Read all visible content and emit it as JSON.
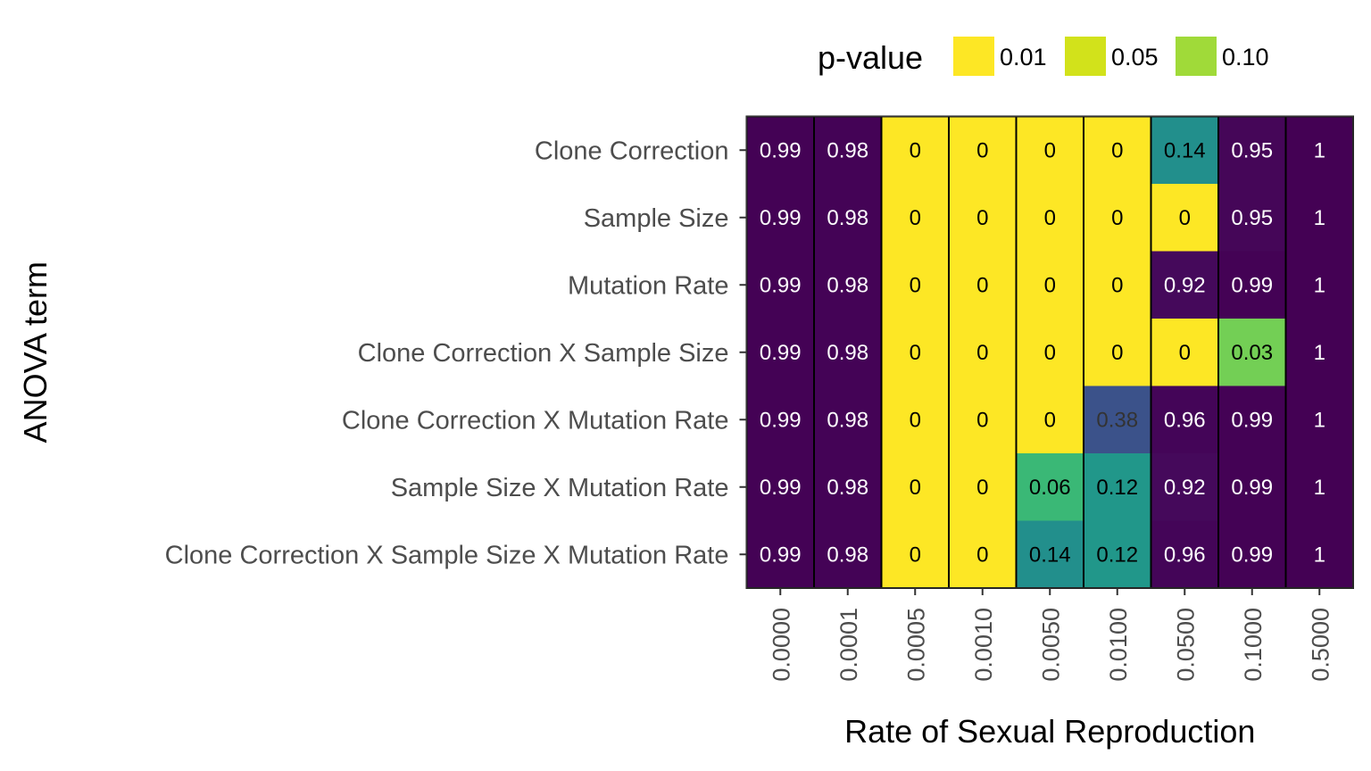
{
  "chart_data": {
    "type": "heatmap",
    "xlabel": "Rate of Sexual Reproduction",
    "ylabel": "ANOVA term",
    "x_categories": [
      "0.0000",
      "0.0001",
      "0.0005",
      "0.0010",
      "0.0050",
      "0.0100",
      "0.0500",
      "0.1000",
      "0.5000"
    ],
    "y_categories": [
      "Clone Correction",
      "Sample Size",
      "Mutation Rate",
      "Clone Correction X Sample Size",
      "Clone Correction X Mutation Rate",
      "Sample Size X Mutation Rate",
      "Clone Correction X Sample Size X Mutation Rate"
    ],
    "values": [
      [
        0.99,
        0.98,
        0,
        0,
        0,
        0,
        0.14,
        0.95,
        1
      ],
      [
        0.99,
        0.98,
        0,
        0,
        0,
        0,
        0,
        0.95,
        1
      ],
      [
        0.99,
        0.98,
        0,
        0,
        0,
        0,
        0.92,
        0.99,
        1
      ],
      [
        0.99,
        0.98,
        0,
        0,
        0,
        0,
        0,
        0.03,
        1
      ],
      [
        0.99,
        0.98,
        0,
        0,
        0,
        0.38,
        0.96,
        0.99,
        1
      ],
      [
        0.99,
        0.98,
        0,
        0,
        0.06,
        0.12,
        0.92,
        0.99,
        1
      ],
      [
        0.99,
        0.98,
        0,
        0,
        0.14,
        0.12,
        0.96,
        0.99,
        1
      ]
    ],
    "value_labels": [
      [
        "0.99",
        "0.98",
        "0",
        "0",
        "0",
        "0",
        "0.14",
        "0.95",
        "1"
      ],
      [
        "0.99",
        "0.98",
        "0",
        "0",
        "0",
        "0",
        "0",
        "0.95",
        "1"
      ],
      [
        "0.99",
        "0.98",
        "0",
        "0",
        "0",
        "0",
        "0.92",
        "0.99",
        "1"
      ],
      [
        "0.99",
        "0.98",
        "0",
        "0",
        "0",
        "0",
        "0",
        "0.03",
        "1"
      ],
      [
        "0.99",
        "0.98",
        "0",
        "0",
        "0",
        "0.38",
        "0.96",
        "0.99",
        "1"
      ],
      [
        "0.99",
        "0.98",
        "0",
        "0",
        "0.06",
        "0.12",
        "0.92",
        "0.99",
        "1"
      ],
      [
        "0.99",
        "0.98",
        "0",
        "0",
        "0.14",
        "0.12",
        "0.96",
        "0.99",
        "1"
      ]
    ],
    "legend": {
      "title": "p-value",
      "placement": "top",
      "entries": [
        {
          "label": "0.01",
          "color": "#FDE725"
        },
        {
          "label": "0.05",
          "color": "#D2E21B"
        },
        {
          "label": "0.10",
          "color": "#A0DA39"
        }
      ]
    },
    "colormap": "viridis",
    "grid": false
  }
}
